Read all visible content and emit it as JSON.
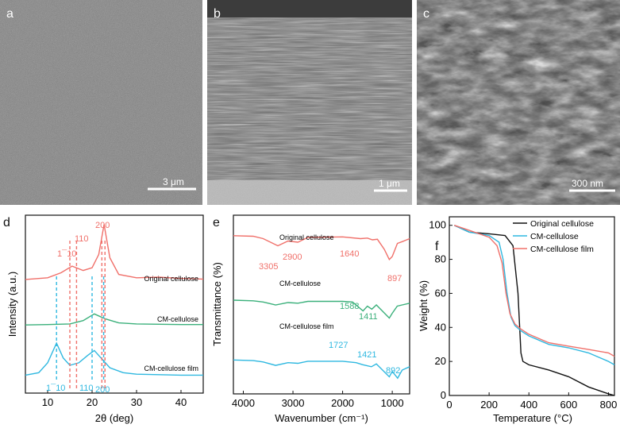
{
  "panels": {
    "a": {
      "label": "a",
      "scale": "3 μm"
    },
    "b": {
      "label": "b",
      "scale": "1 μm"
    },
    "c": {
      "label": "c",
      "scale": "300 nm"
    },
    "d": {
      "label": "d",
      "xlabel": "2θ (deg)",
      "ylabel": "Intensity (a.u.)",
      "xticks": [
        "10",
        "20",
        "30",
        "40"
      ],
      "series_labels": [
        "Original cellulose",
        "CM-cellulose",
        "CM-cellulose film"
      ],
      "peak_labels_top": [
        "110",
        "1¯10",
        "200"
      ],
      "peak_labels_bottom": [
        "1¯10",
        "110",
        "200"
      ]
    },
    "e": {
      "label": "e",
      "xlabel": "Wavenumber (cm⁻¹)",
      "ylabel": "Transmittance (%)",
      "xticks": [
        "4000",
        "3000",
        "2000",
        "1000"
      ],
      "series_labels": [
        "Original cellulose",
        "CM-cellulose",
        "CM-cellulose film"
      ],
      "bands_original": [
        "3305",
        "2900",
        "1640",
        "897"
      ],
      "bands_cm": [
        "1588",
        "1411"
      ],
      "bands_film": [
        "1727",
        "1421",
        "892"
      ]
    },
    "f": {
      "label": "f",
      "xlabel": "Temperature (°C)",
      "ylabel": "Weight (%)",
      "xticks": [
        "0",
        "200",
        "400",
        "600",
        "800"
      ],
      "yticks": [
        "0",
        "20",
        "40",
        "60",
        "80",
        "100"
      ],
      "legend": [
        "Original cellulose",
        "CM-cellulose",
        "CM-cellulose film"
      ]
    }
  },
  "colors": {
    "red": "#f0706a",
    "green": "#3bb07b",
    "cyan": "#2fb8e0",
    "black": "#111111"
  },
  "chart_data": [
    {
      "type": "line",
      "xlabel": "2θ (deg)",
      "ylabel": "Intensity (a.u.)",
      "xlim": [
        5,
        45
      ],
      "series": [
        {
          "name": "Original cellulose",
          "x": [
            5,
            10,
            13,
            15.5,
            18,
            20,
            21.5,
            22.7,
            24,
            26,
            30,
            35,
            40,
            45
          ],
          "y": [
            0.55,
            0.6,
            0.75,
            0.95,
            0.82,
            0.9,
            1.3,
            2.2,
            1.2,
            0.7,
            0.6,
            0.62,
            0.58,
            0.56
          ]
        },
        {
          "name": "CM-cellulose",
          "x": [
            5,
            10,
            15,
            18,
            20.5,
            23,
            26,
            30,
            35,
            40,
            45
          ],
          "y": [
            0.52,
            0.53,
            0.55,
            0.65,
            0.85,
            0.7,
            0.58,
            0.55,
            0.54,
            0.53,
            0.53
          ]
        },
        {
          "name": "CM-cellulose film",
          "x": [
            5,
            8,
            10,
            12,
            13.5,
            15,
            17,
            19,
            20.5,
            22,
            24,
            27,
            30,
            35,
            40,
            45
          ],
          "y": [
            0.3,
            0.35,
            0.55,
            0.95,
            0.65,
            0.5,
            0.55,
            0.7,
            0.8,
            0.65,
            0.45,
            0.35,
            0.32,
            0.31,
            0.3,
            0.3
          ]
        }
      ]
    },
    {
      "type": "line",
      "xlabel": "Wavenumber (cm⁻¹)",
      "ylabel": "Transmittance (%)",
      "xlim": [
        4200,
        650
      ],
      "series": [
        {
          "name": "Original cellulose",
          "x": [
            4200,
            3800,
            3600,
            3305,
            3100,
            2900,
            2700,
            2000,
            1640,
            1500,
            1400,
            1300,
            1160,
            1060,
            1000,
            897,
            800,
            650
          ],
          "y": [
            0.95,
            0.94,
            0.9,
            0.78,
            0.86,
            0.84,
            0.92,
            0.93,
            0.9,
            0.91,
            0.88,
            0.89,
            0.72,
            0.55,
            0.6,
            0.82,
            0.85,
            0.9
          ]
        },
        {
          "name": "CM-cellulose",
          "x": [
            4200,
            3800,
            3600,
            3350,
            3100,
            2900,
            2700,
            2000,
            1800,
            1588,
            1500,
            1411,
            1320,
            1060,
            1000,
            900,
            800,
            650
          ],
          "y": [
            0.6,
            0.59,
            0.57,
            0.52,
            0.56,
            0.55,
            0.58,
            0.58,
            0.57,
            0.42,
            0.5,
            0.45,
            0.52,
            0.3,
            0.38,
            0.5,
            0.52,
            0.55
          ]
        },
        {
          "name": "CM-cellulose film",
          "x": [
            4200,
            3800,
            3600,
            3350,
            3100,
            2900,
            2700,
            2000,
            1727,
            1600,
            1421,
            1320,
            1060,
            1000,
            892,
            800,
            650
          ],
          "y": [
            0.35,
            0.34,
            0.32,
            0.27,
            0.31,
            0.3,
            0.33,
            0.33,
            0.31,
            0.28,
            0.25,
            0.29,
            0.1,
            0.18,
            0.08,
            0.2,
            0.25
          ]
        }
      ]
    },
    {
      "type": "line",
      "xlabel": "Temperature (°C)",
      "ylabel": "Weight (%)",
      "xlim": [
        0,
        830
      ],
      "ylim": [
        0,
        105
      ],
      "legend_position": "top-right",
      "series": [
        {
          "name": "Original cellulose",
          "x": [
            25,
            100,
            200,
            280,
            320,
            345,
            360,
            370,
            400,
            500,
            600,
            700,
            800,
            830
          ],
          "y": [
            100,
            96,
            95,
            94,
            88,
            60,
            25,
            20,
            18,
            15,
            11,
            5,
            1,
            0
          ]
        },
        {
          "name": "CM-cellulose",
          "x": [
            25,
            100,
            200,
            250,
            270,
            290,
            310,
            330,
            360,
            400,
            500,
            600,
            700,
            800,
            830
          ],
          "y": [
            100,
            96,
            94,
            90,
            80,
            60,
            46,
            41,
            38,
            35,
            30,
            28,
            25,
            20,
            18
          ]
        },
        {
          "name": "CM-cellulose film",
          "x": [
            25,
            100,
            200,
            240,
            265,
            285,
            305,
            330,
            360,
            400,
            500,
            600,
            700,
            800,
            830
          ],
          "y": [
            100,
            97,
            93,
            88,
            78,
            60,
            48,
            42,
            39,
            36,
            31,
            29,
            27,
            25,
            23
          ]
        }
      ]
    }
  ]
}
